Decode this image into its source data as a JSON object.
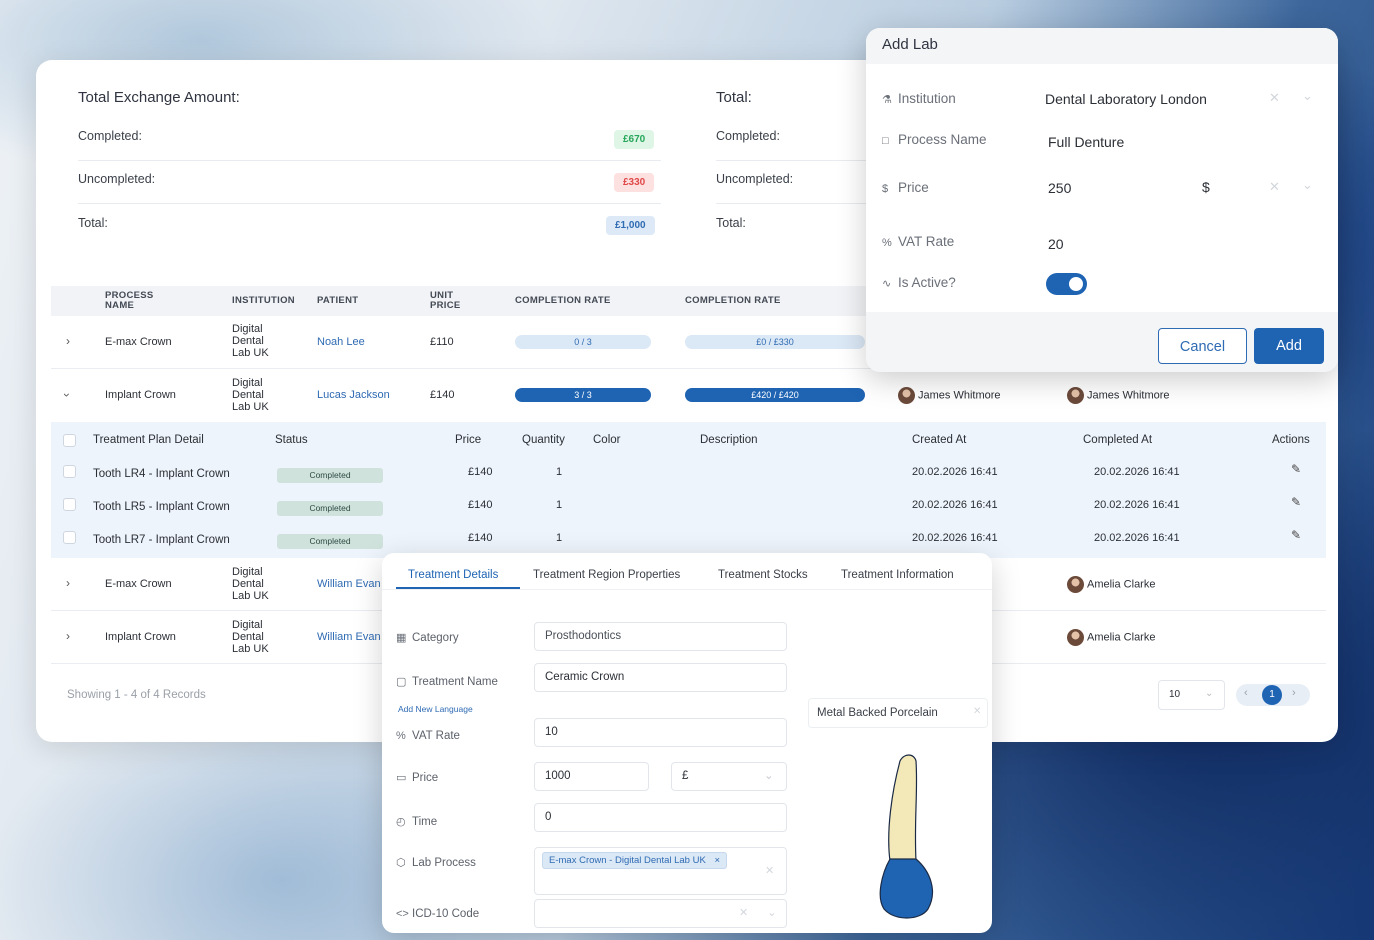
{
  "summary_left": {
    "title": "Total Exchange Amount:",
    "completed_label": "Completed:",
    "completed_value": "£670",
    "uncompleted_label": "Uncompleted:",
    "uncompleted_value": "£330",
    "total_label": "Total:",
    "total_value": "£1,000"
  },
  "summary_right": {
    "title": "Total:",
    "completed_label": "Completed:",
    "uncompleted_label": "Uncompleted:",
    "total_label": "Total:"
  },
  "table": {
    "headers": {
      "process_name": "PROCESS NAME",
      "institution": "INSTITUTION",
      "patient": "PATIENT",
      "unit_price": "UNIT PRICE",
      "completion_rate_1": "COMPLETION RATE",
      "completion_rate_2": "COMPLETION RATE"
    },
    "rows": [
      {
        "process": "E-max Crown",
        "institution": "Digital Dental Lab UK",
        "patient": "Noah Lee",
        "price": "£110",
        "rate_count": "0 / 3",
        "rate_amount": "£0 / £330",
        "expanded": false
      },
      {
        "process": "Implant Crown",
        "institution": "Digital Dental Lab UK",
        "patient": "Lucas Jackson",
        "price": "£140",
        "rate_count": "3 / 3",
        "rate_amount": "£420 / £420",
        "user1": "James Whitmore",
        "user2": "James Whitmore",
        "expanded": true
      },
      {
        "process": "E-max Crown",
        "institution": "Digital Dental Lab UK",
        "patient": "William Evan",
        "user2": "Amelia Clarke",
        "expanded": false
      },
      {
        "process": "Implant Crown",
        "institution": "Digital Dental Lab UK",
        "patient": "William Evan",
        "user2": "Amelia Clarke",
        "expanded": false
      }
    ],
    "detail": {
      "headers": {
        "detail": "Treatment Plan Detail",
        "status": "Status",
        "price": "Price",
        "quantity": "Quantity",
        "color": "Color",
        "description": "Description",
        "created": "Created At",
        "completed": "Completed At",
        "actions": "Actions"
      },
      "rows": [
        {
          "name": "Tooth LR4 - Implant Crown",
          "status": "Completed",
          "price": "£140",
          "qty": "1",
          "created": "20.02.2026 16:41",
          "completed": "20.02.2026 16:41"
        },
        {
          "name": "Tooth LR5 - Implant Crown",
          "status": "Completed",
          "price": "£140",
          "qty": "1",
          "created": "20.02.2026 16:41",
          "completed": "20.02.2026 16:41"
        },
        {
          "name": "Tooth LR7 - Implant Crown",
          "status": "Completed",
          "price": "£140",
          "qty": "1",
          "created": "20.02.2026 16:41",
          "completed": "20.02.2026 16:41"
        }
      ]
    },
    "footer": {
      "records": "Showing 1 - 4 of 4 Records",
      "page_size": "10",
      "current_page": "1"
    }
  },
  "add_lab": {
    "title": "Add Lab",
    "institution_label": "Institution",
    "institution_value": "Dental Laboratory London",
    "process_label": "Process Name",
    "process_value": "Full Denture",
    "price_label": "Price",
    "price_value": "250",
    "currency": "$",
    "vat_label": "VAT Rate",
    "vat_value": "20",
    "active_label": "Is Active?",
    "active": true,
    "cancel": "Cancel",
    "add": "Add"
  },
  "treatment_panel": {
    "tabs": [
      "Treatment Details",
      "Treatment Region Properties",
      "Treatment Stocks",
      "Treatment Information"
    ],
    "category_label": "Category",
    "category_value": "Prosthodontics",
    "name_label": "Treatment Name",
    "name_value": "Ceramic Crown",
    "add_language": "Add New Language",
    "vat_label": "VAT Rate",
    "vat_value": "10",
    "price_label": "Price",
    "price_value": "1000",
    "currency": "£",
    "time_label": "Time",
    "time_value": "0",
    "lab_label": "Lab Process",
    "lab_tag": "E-max Crown - Digital Dental Lab UK",
    "icd_label": "ICD-10 Code",
    "material": "Metal Backed Porcelain"
  },
  "colors": {
    "primary": "#1f64b3",
    "success_bg": "#dff5e6",
    "success": "#27a65a",
    "danger_bg": "#fde0e0",
    "danger": "#e04848",
    "tooth_crown": "#1f64b3",
    "tooth_root": "#f3e8b8"
  }
}
